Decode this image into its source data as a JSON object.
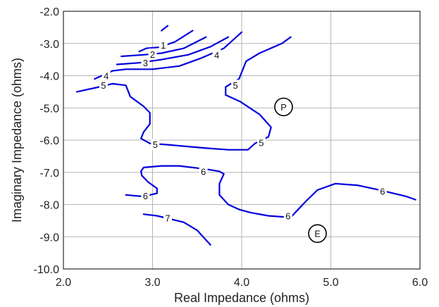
{
  "chart_data": {
    "type": "line",
    "subtype": "contour",
    "xlabel": "Real Impedance (ohms)",
    "ylabel": "Imaginary Impedance (ohms)",
    "xlim": [
      2.0,
      6.0
    ],
    "ylim": [
      -10.0,
      -2.0
    ],
    "xticks": [
      "2.0",
      "3.0",
      "4.0",
      "5.0",
      "6.0"
    ],
    "yticks": [
      "-2.0",
      "-3.0",
      "-4.0",
      "-5.0",
      "-6.0",
      "-7.0",
      "-8.0",
      "-9.0",
      "-10.0"
    ],
    "xtick_values": [
      2,
      3,
      4,
      5,
      6
    ],
    "ytick_values": [
      -2,
      -3,
      -4,
      -5,
      -6,
      -7,
      -8,
      -9,
      -10
    ],
    "grid": true,
    "line_color": "#0000dd",
    "series": [
      {
        "label": "",
        "points": [
          [
            3.1,
            -2.6
          ],
          [
            3.17,
            -2.45
          ]
        ]
      },
      {
        "label": "1",
        "points": [
          [
            2.85,
            -3.25
          ],
          [
            2.93,
            -3.15
          ],
          [
            3.07,
            -3.12
          ],
          [
            3.25,
            -2.95
          ],
          [
            3.45,
            -2.6
          ]
        ]
      },
      {
        "label": "2",
        "points": [
          [
            2.65,
            -3.4
          ],
          [
            2.9,
            -3.35
          ],
          [
            3.1,
            -3.3
          ],
          [
            3.35,
            -3.15
          ],
          [
            3.6,
            -2.8
          ]
        ]
      },
      {
        "label": "3",
        "points": [
          [
            2.6,
            -3.65
          ],
          [
            2.85,
            -3.6
          ],
          [
            3.1,
            -3.5
          ],
          [
            3.4,
            -3.35
          ],
          [
            3.65,
            -3.1
          ],
          [
            3.85,
            -2.8
          ]
        ]
      },
      {
        "label": "4",
        "points": [
          [
            2.35,
            -4.1
          ],
          [
            2.55,
            -3.85
          ],
          [
            2.7,
            -3.8
          ],
          [
            3.0,
            -3.8
          ],
          [
            3.3,
            -3.7
          ],
          [
            3.55,
            -3.45
          ],
          [
            3.8,
            -3.15
          ],
          [
            4.0,
            -2.65
          ]
        ]
      },
      {
        "label": "5",
        "points": [
          [
            2.15,
            -4.5
          ],
          [
            2.4,
            -4.35
          ],
          [
            2.55,
            -4.25
          ],
          [
            2.7,
            -4.3
          ],
          [
            2.75,
            -4.65
          ],
          [
            2.9,
            -4.95
          ],
          [
            2.97,
            -5.15
          ],
          [
            2.97,
            -5.5
          ],
          [
            2.9,
            -5.75
          ],
          [
            2.87,
            -5.95
          ],
          [
            2.97,
            -6.1
          ],
          [
            3.2,
            -6.15
          ],
          [
            3.6,
            -6.25
          ],
          [
            3.85,
            -6.3
          ],
          [
            4.07,
            -6.3
          ],
          [
            4.15,
            -6.1
          ],
          [
            4.3,
            -5.9
          ],
          [
            4.33,
            -5.6
          ],
          [
            4.2,
            -5.2
          ],
          [
            3.98,
            -4.8
          ],
          [
            3.82,
            -4.6
          ],
          [
            3.82,
            -4.35
          ],
          [
            3.97,
            -4.1
          ],
          [
            4.05,
            -3.55
          ],
          [
            4.2,
            -3.3
          ],
          [
            4.45,
            -3.0
          ],
          [
            4.55,
            -2.8
          ]
        ]
      },
      {
        "label": "6",
        "points": [
          [
            2.87,
            -6.97
          ],
          [
            2.9,
            -6.85
          ],
          [
            3.1,
            -6.8
          ],
          [
            3.3,
            -6.8
          ],
          [
            3.6,
            -6.9
          ],
          [
            3.75,
            -6.97
          ],
          [
            3.8,
            -7.05
          ],
          [
            3.75,
            -7.35
          ],
          [
            3.75,
            -7.7
          ],
          [
            3.85,
            -8.0
          ],
          [
            3.97,
            -8.15
          ],
          [
            4.1,
            -8.25
          ],
          [
            4.3,
            -8.35
          ],
          [
            4.55,
            -8.4
          ],
          [
            4.6,
            -8.25
          ],
          [
            4.72,
            -7.9
          ],
          [
            4.85,
            -7.55
          ],
          [
            5.05,
            -7.35
          ],
          [
            5.3,
            -7.4
          ],
          [
            5.55,
            -7.55
          ],
          [
            5.85,
            -7.75
          ],
          [
            5.95,
            -7.85
          ]
        ]
      },
      {
        "label": "6",
        "points": [
          [
            2.7,
            -7.7
          ],
          [
            2.9,
            -7.75
          ],
          [
            3.05,
            -7.65
          ],
          [
            3.05,
            -7.5
          ],
          [
            2.95,
            -7.3
          ],
          [
            2.88,
            -7.1
          ],
          [
            2.87,
            -6.97
          ]
        ]
      },
      {
        "label": "7",
        "points": [
          [
            2.9,
            -8.3
          ],
          [
            3.05,
            -8.35
          ],
          [
            3.35,
            -8.55
          ],
          [
            3.5,
            -8.8
          ],
          [
            3.65,
            -9.25
          ]
        ]
      }
    ],
    "contour_labels": [
      {
        "text": "1",
        "x": 3.12,
        "y": -3.05
      },
      {
        "text": "2",
        "x": 3.0,
        "y": -3.33
      },
      {
        "text": "3",
        "x": 2.92,
        "y": -3.6
      },
      {
        "text": "4",
        "x": 3.72,
        "y": -3.35
      },
      {
        "text": "4",
        "x": 2.48,
        "y": -4.0
      },
      {
        "text": "5",
        "x": 2.45,
        "y": -4.3
      },
      {
        "text": "5",
        "x": 3.93,
        "y": -4.3
      },
      {
        "text": "5",
        "x": 4.22,
        "y": -6.08
      },
      {
        "text": "5",
        "x": 3.03,
        "y": -6.13
      },
      {
        "text": "6",
        "x": 3.57,
        "y": -6.97
      },
      {
        "text": "6",
        "x": 2.92,
        "y": -7.73
      },
      {
        "text": "6",
        "x": 4.52,
        "y": -8.35
      },
      {
        "text": "6",
        "x": 5.58,
        "y": -7.58
      },
      {
        "text": "7",
        "x": 3.17,
        "y": -8.42
      }
    ],
    "markers": [
      {
        "text": "P",
        "x": 4.47,
        "y": -4.97
      },
      {
        "text": "E",
        "x": 4.85,
        "y": -8.9
      }
    ]
  }
}
